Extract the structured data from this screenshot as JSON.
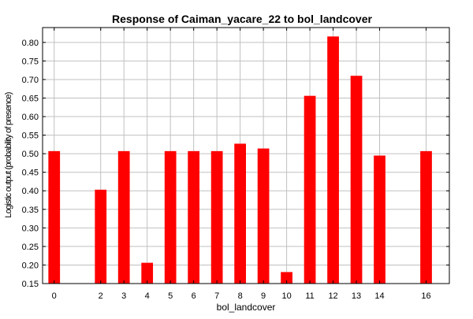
{
  "chart_data": {
    "type": "bar",
    "title": "Response of Caiman_yacare_22 to bol_landcover",
    "xlabel": "bol_landcover",
    "ylabel": "Logistic output (probability of presence)",
    "x": [
      0,
      2,
      3,
      4,
      5,
      6,
      7,
      8,
      9,
      10,
      11,
      12,
      13,
      14,
      16
    ],
    "x_tick_labels": [
      "0",
      "2",
      "3",
      "4",
      "5",
      "6",
      "7",
      "8",
      "9",
      "10",
      "11",
      "12",
      "13",
      "14",
      "16"
    ],
    "values": [
      0.507,
      0.403,
      0.507,
      0.206,
      0.507,
      0.507,
      0.507,
      0.527,
      0.514,
      0.181,
      0.656,
      0.816,
      0.71,
      0.495,
      0.507
    ],
    "ylim": [
      0.15,
      0.84
    ],
    "xlim": [
      -0.5,
      17
    ],
    "y_ticks": [
      0.15,
      0.2,
      0.25,
      0.3,
      0.35,
      0.4,
      0.45,
      0.5,
      0.55,
      0.6,
      0.65,
      0.7,
      0.75,
      0.8
    ],
    "y_tick_labels": [
      "0.15",
      "0.20",
      "0.25",
      "0.30",
      "0.35",
      "0.40",
      "0.45",
      "0.50",
      "0.55",
      "0.60",
      "0.65",
      "0.70",
      "0.75",
      "0.80"
    ],
    "grid": true,
    "bar_color": "#ff0000",
    "grid_color": "#c0c0c0"
  }
}
